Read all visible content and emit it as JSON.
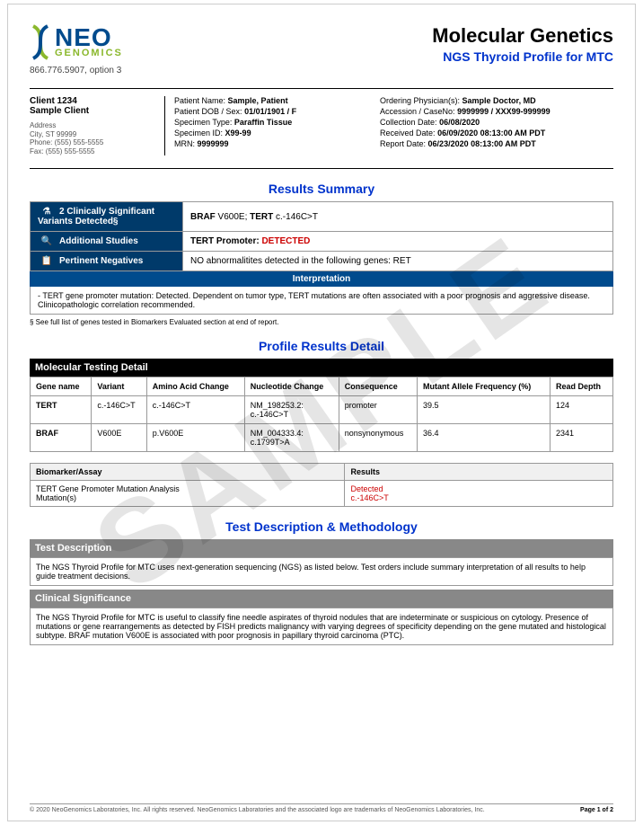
{
  "watermark": "SAMPLE",
  "logo": {
    "main": "NEO",
    "sub": "GENOMICS",
    "phone": "866.776.5907, option 3",
    "colors": {
      "blue": "#004b8d",
      "green": "#8bb82d"
    }
  },
  "title": {
    "main": "Molecular Genetics",
    "sub": "NGS Thyroid Profile for MTC"
  },
  "client": {
    "id": "Client 1234",
    "name": "Sample Client",
    "addr_label": "Address",
    "city": "City, ST 99999",
    "phone": "Phone: (555) 555-5555",
    "fax": "Fax: (555) 555-5555"
  },
  "patient": {
    "name_label": "Patient Name:",
    "name": "Sample, Patient",
    "dob_label": "Patient DOB / Sex:",
    "dob": "01/01/1901 / F",
    "spec_type_label": "Specimen Type:",
    "spec_type": "Paraffin Tissue",
    "spec_id_label": "Specimen ID:",
    "spec_id": "X99-99",
    "mrn_label": "MRN:",
    "mrn": "9999999"
  },
  "ordering": {
    "phys_label": "Ordering Physician(s):",
    "phys": "Sample Doctor, MD",
    "acc_label": "Accession / CaseNo:",
    "acc": "9999999 / XXX99-999999",
    "coll_label": "Collection Date:",
    "coll": "06/08/2020",
    "recv_label": "Received Date:",
    "recv": "06/09/2020 08:13:00 AM PDT",
    "rep_label": "Report Date:",
    "rep": "06/23/2020 08:13:00 AM PDT"
  },
  "sections": {
    "results_summary": "Results Summary",
    "profile_detail": "Profile Results Detail",
    "test_desc": "Test Description & Methodology"
  },
  "summary": {
    "row1_label": "2 Clinically Significant Variants Detected§",
    "row1_value_bold1": "BRAF",
    "row1_value_rest1": " V600E; ",
    "row1_value_bold2": "TERT",
    "row1_value_rest2": " c.-146C>T",
    "row2_label": "Additional Studies",
    "row2_value_bold": "TERT Promoter: ",
    "row2_value_detected": "DETECTED",
    "row3_label": "Pertinent Negatives",
    "row3_value": "NO abnormalitites detected in the following genes: RET",
    "interp_header": "Interpretation",
    "interp_body": "- TERT gene promoter mutation: Detected. Dependent on tumor type, TERT mutations are often associated with a poor prognosis and aggressive disease. Clinicopathologic correlation recommended.",
    "footnote": "§ See full list of genes tested in Biomarkers Evaluated section at end of report."
  },
  "molecular_detail": {
    "header": "Molecular Testing Detail",
    "columns": [
      "Gene name",
      "Variant",
      "Amino Acid Change",
      "Nucleotide Change",
      "Consequence",
      "Mutant Allele Frequency (%)",
      "Read Depth"
    ],
    "rows": [
      [
        "TERT",
        "c.-146C>T",
        "c.-146C>T",
        "NM_198253.2:\nc.-146C>T",
        "promoter",
        "39.5",
        "124"
      ],
      [
        "BRAF",
        "V600E",
        "p.V600E",
        "NM_004333.4:\nc.1799T>A",
        "nonsynonymous",
        "36.4",
        "2341"
      ]
    ]
  },
  "biomarker": {
    "col1": "Biomarker/Assay",
    "col2": "Results",
    "row_label": "TERT Gene Promoter Mutation Analysis\n  Mutation(s)",
    "row_result1": "Detected",
    "row_result2": "c.-146C>T"
  },
  "test_description": {
    "header1": "Test Description",
    "body1": "The NGS Thyroid Profile for MTC uses next-generation sequencing (NGS) as listed below. Test orders include summary interpretation of all results to help guide treatment decisions.",
    "header2": "Clinical Significance",
    "body2": "The NGS Thyroid Profile for MTC is useful to classify fine needle aspirates of thyroid nodules that are indeterminate or suspicious on cytology. Presence of mutations or gene rearrangements as detected by FISH predicts malignancy with varying degrees of specificity depending on the gene mutated and histological subtype. BRAF mutation V600E is associated with poor prognosis in papillary thyroid carcinoma (PTC)."
  },
  "footer": {
    "copyright": "© 2020 NeoGenomics Laboratories, Inc. All rights reserved. NeoGenomics Laboratories and the associated logo are trademarks of NeoGenomics Laboratories, Inc.",
    "page": "Page 1 of 2"
  }
}
